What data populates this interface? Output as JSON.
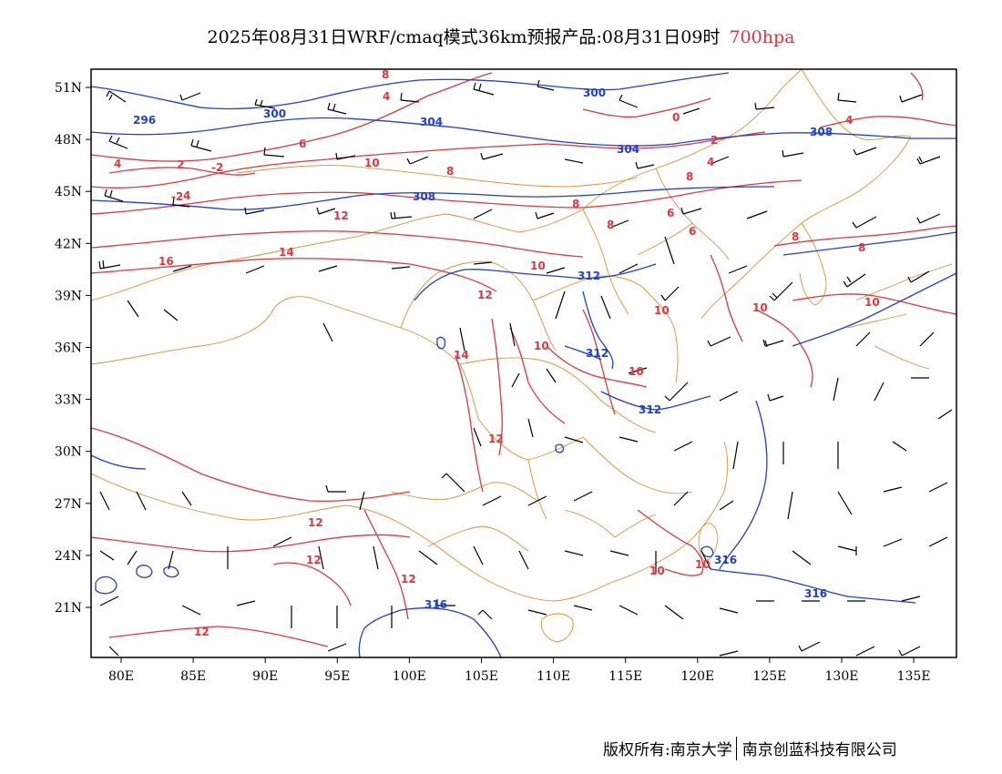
{
  "header": {
    "title_main": "2025年08月31日WRF/cmaq模式36km预报产品:08月31日09时",
    "title_level": "700hpa"
  },
  "map": {
    "lon_labels": [
      "80E",
      "85E",
      "90E",
      "95E",
      "100E",
      "105E",
      "110E",
      "115E",
      "120E",
      "125E",
      "130E",
      "135E"
    ],
    "lat_labels": [
      "51N",
      "48N",
      "45N",
      "42N",
      "39N",
      "36N",
      "33N",
      "30N",
      "27N",
      "24N",
      "21N"
    ],
    "colors": {
      "height_contour": "#1e3fd8",
      "temp_contour": "#e8333a",
      "boundary": "#e0902c",
      "wind_barb": "#000000",
      "frame": "#000000"
    },
    "height_labels": [
      "296",
      "300",
      "300",
      "304",
      "304",
      "308",
      "308",
      "312",
      "312",
      "312",
      "316",
      "316",
      "316"
    ],
    "temp_labels": [
      "8",
      "4",
      "2",
      "-2",
      "-2",
      "4",
      "6",
      "10",
      "8",
      "12",
      "14",
      "16",
      "8",
      "4",
      "2",
      "0",
      "8",
      "6",
      "6",
      "8",
      "8",
      "10",
      "12",
      "10",
      "14",
      "10",
      "10",
      "10",
      "12",
      "12",
      "12",
      "12",
      "12",
      "10",
      "10",
      "10",
      "8",
      "4",
      "4"
    ]
  },
  "footer": {
    "left": "版权所有:南京大学",
    "right": "南京创蓝科技有限公司"
  }
}
